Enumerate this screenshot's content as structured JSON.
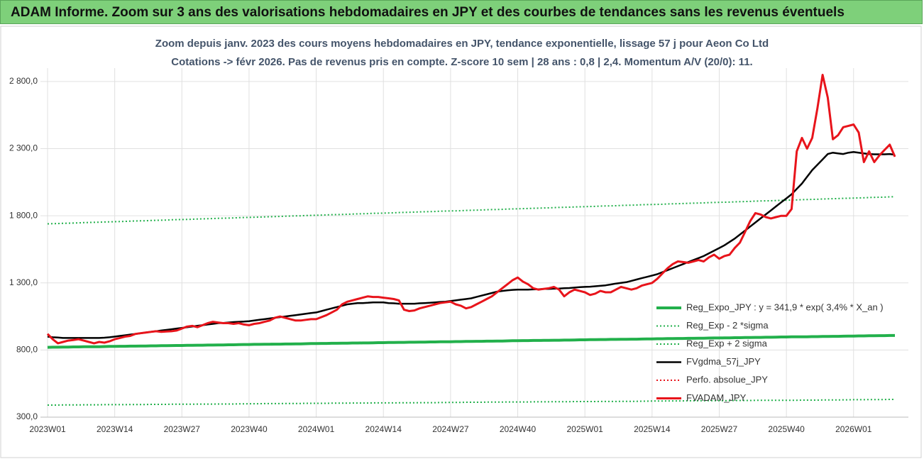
{
  "header": {
    "title": "ADAM Informe. Zoom sur 3 ans des valorisations hebdomadaires en JPY et des courbes de tendances sans les revenus éventuels"
  },
  "chart_data": {
    "type": "line",
    "title": "Zoom depuis janv. 2023 des cours moyens hebdomadaires en JPY, tendance exponentielle, lissage 57 j pour Aeon Co Ltd",
    "subtitle": "Cotations -> févr 2026. Pas de revenus pris en compte. Z-score 10 sem | 28 ans : 0,8 | 2,4. Momentum A/V (20/0): 11.",
    "categories": [
      "2023W01",
      null,
      null,
      null,
      null,
      null,
      null,
      null,
      null,
      null,
      null,
      null,
      null,
      "2023W14",
      null,
      null,
      null,
      null,
      null,
      null,
      null,
      null,
      null,
      null,
      null,
      null,
      "2023W27",
      null,
      null,
      null,
      null,
      null,
      null,
      null,
      null,
      null,
      null,
      null,
      null,
      "2023W40",
      null,
      null,
      null,
      null,
      null,
      null,
      null,
      null,
      null,
      null,
      null,
      null,
      "2024W01",
      null,
      null,
      null,
      null,
      null,
      null,
      null,
      null,
      null,
      null,
      null,
      null,
      "2024W14",
      null,
      null,
      null,
      null,
      null,
      null,
      null,
      null,
      null,
      null,
      null,
      null,
      "2024W27",
      null,
      null,
      null,
      null,
      null,
      null,
      null,
      null,
      null,
      null,
      null,
      null,
      "2024W40",
      null,
      null,
      null,
      null,
      null,
      null,
      null,
      null,
      null,
      null,
      null,
      null,
      "2025W01",
      null,
      null,
      null,
      null,
      null,
      null,
      null,
      null,
      null,
      null,
      null,
      null,
      "2025W14",
      null,
      null,
      null,
      null,
      null,
      null,
      null,
      null,
      null,
      null,
      null,
      null,
      "2025W27",
      null,
      null,
      null,
      null,
      null,
      null,
      null,
      null,
      null,
      null,
      null,
      null,
      "2025W40",
      null,
      null,
      null,
      null,
      null,
      null,
      null,
      null,
      null,
      null,
      null,
      null,
      "2026W01",
      null,
      null,
      null,
      null,
      null,
      null,
      null,
      null
    ],
    "ylim": [
      300,
      2900
    ],
    "yticks": [
      {
        "value": 300,
        "label": "300,0"
      },
      {
        "value": 800,
        "label": "800,0"
      },
      {
        "value": 1300,
        "label": "1 300,0"
      },
      {
        "value": 1800,
        "label": "1 800,0"
      },
      {
        "value": 2300,
        "label": "2 300,0"
      },
      {
        "value": 2800,
        "label": "2 800,0"
      }
    ],
    "grid": true,
    "legend": "lower right",
    "series": [
      {
        "name": "Reg_Expo_JPY : y = 341,9 * exp( 3,4% *  X_an )",
        "color": "#22b04b",
        "dash": "solid",
        "width": 4,
        "values": [
          820,
          821,
          821,
          822,
          822,
          823,
          823,
          824,
          824,
          825,
          825,
          826,
          827,
          827,
          828,
          828,
          829,
          829,
          830,
          830,
          831,
          831,
          832,
          832,
          833,
          834,
          834,
          835,
          835,
          836,
          836,
          837,
          837,
          838,
          838,
          839,
          839,
          840,
          841,
          841,
          842,
          842,
          843,
          843,
          844,
          844,
          845,
          845,
          846,
          846,
          847,
          848,
          848,
          849,
          849,
          850,
          850,
          851,
          851,
          852,
          852,
          853,
          853,
          854,
          855,
          855,
          856,
          856,
          857,
          857,
          858,
          858,
          859,
          859,
          860,
          860,
          861,
          862,
          862,
          863,
          863,
          864,
          864,
          865,
          865,
          866,
          866,
          867,
          867,
          868,
          869,
          869,
          870,
          870,
          871,
          871,
          872,
          872,
          873,
          873,
          874,
          874,
          875,
          876,
          876,
          877,
          877,
          878,
          878,
          879,
          879,
          880,
          880,
          881,
          881,
          882,
          883,
          883,
          884,
          884,
          885,
          885,
          886,
          886,
          887,
          887,
          888,
          888,
          889,
          890,
          890,
          891,
          891,
          892,
          892,
          893,
          893,
          894,
          894,
          895,
          895,
          896,
          897,
          897,
          898,
          898,
          899,
          899,
          900,
          900,
          901,
          901,
          902,
          902,
          903,
          904,
          904,
          905,
          905,
          906,
          906,
          907,
          907,
          908,
          908
        ]
      },
      {
        "name": "Reg_Exp - 2 *sigma",
        "color": "#22b04b",
        "dash": "dotted",
        "width": 2,
        "values": [
          390,
          390,
          390,
          391,
          391,
          391,
          391,
          392,
          392,
          392,
          392,
          393,
          393,
          393,
          393,
          393,
          394,
          394,
          394,
          394,
          395,
          395,
          395,
          395,
          396,
          396,
          396,
          396,
          396,
          397,
          397,
          397,
          397,
          398,
          398,
          398,
          398,
          399,
          399,
          400,
          400,
          400,
          401,
          401,
          401,
          401,
          402,
          402,
          402,
          402,
          403,
          403,
          403,
          403,
          403,
          404,
          404,
          404,
          404,
          405,
          405,
          405,
          405,
          406,
          406,
          406,
          406,
          406,
          407,
          407,
          407,
          407,
          408,
          408,
          408,
          408,
          409,
          409,
          410,
          410,
          410,
          411,
          411,
          411,
          411,
          412,
          412,
          412,
          412,
          413,
          413,
          413,
          413,
          413,
          414,
          414,
          414,
          414,
          415,
          415,
          415,
          415,
          416,
          416,
          416,
          416,
          416,
          417,
          417,
          417,
          417,
          418,
          418,
          418,
          418,
          419,
          419,
          420,
          420,
          420,
          421,
          421,
          421,
          421,
          422,
          422,
          422,
          422,
          423,
          423,
          423,
          423,
          423,
          424,
          424,
          424,
          424,
          425,
          425,
          425,
          425,
          426,
          426,
          426,
          426,
          426,
          427,
          427,
          427,
          427,
          428,
          428,
          428,
          428,
          429,
          429,
          430,
          430,
          430,
          431,
          431,
          431,
          431,
          432,
          432
        ]
      },
      {
        "name": "Reg_Exp + 2 sigma",
        "color": "#22b04b",
        "dash": "dotted",
        "width": 2,
        "values": [
          1740,
          1741,
          1742,
          1744,
          1745,
          1746,
          1747,
          1749,
          1750,
          1751,
          1752,
          1754,
          1755,
          1756,
          1757,
          1758,
          1760,
          1761,
          1762,
          1763,
          1765,
          1766,
          1767,
          1768,
          1770,
          1771,
          1772,
          1773,
          1774,
          1776,
          1777,
          1778,
          1779,
          1781,
          1782,
          1783,
          1784,
          1786,
          1787,
          1788,
          1789,
          1790,
          1792,
          1793,
          1794,
          1795,
          1797,
          1798,
          1799,
          1800,
          1802,
          1803,
          1804,
          1805,
          1806,
          1808,
          1809,
          1810,
          1811,
          1813,
          1814,
          1815,
          1816,
          1818,
          1819,
          1820,
          1821,
          1822,
          1824,
          1825,
          1826,
          1827,
          1829,
          1830,
          1831,
          1832,
          1834,
          1835,
          1836,
          1837,
          1838,
          1840,
          1841,
          1842,
          1843,
          1845,
          1846,
          1847,
          1848,
          1850,
          1851,
          1852,
          1853,
          1854,
          1856,
          1857,
          1858,
          1859,
          1861,
          1862,
          1863,
          1864,
          1866,
          1867,
          1868,
          1869,
          1870,
          1872,
          1873,
          1874,
          1875,
          1877,
          1878,
          1879,
          1880,
          1882,
          1883,
          1884,
          1885,
          1886,
          1888,
          1889,
          1890,
          1891,
          1893,
          1894,
          1895,
          1896,
          1898,
          1899,
          1900,
          1901,
          1902,
          1904,
          1905,
          1906,
          1907,
          1909,
          1910,
          1911,
          1912,
          1914,
          1915,
          1916,
          1917,
          1918,
          1920,
          1921,
          1922,
          1923,
          1925,
          1926,
          1927,
          1928,
          1930,
          1931,
          1932,
          1933,
          1934,
          1936,
          1937,
          1938,
          1939,
          1941,
          1942
        ]
      },
      {
        "name": "FVgdma_57j_JPY",
        "color": "#000000",
        "dash": "solid",
        "width": 2.5,
        "values": [
          900,
          895,
          893,
          890,
          890,
          890,
          890,
          890,
          890,
          890,
          890,
          892,
          895,
          900,
          905,
          910,
          915,
          920,
          925,
          930,
          935,
          940,
          945,
          950,
          955,
          960,
          965,
          970,
          975,
          980,
          985,
          990,
          995,
          1000,
          1002,
          1005,
          1008,
          1010,
          1012,
          1015,
          1020,
          1025,
          1030,
          1035,
          1040,
          1045,
          1050,
          1055,
          1060,
          1065,
          1070,
          1075,
          1080,
          1090,
          1100,
          1110,
          1120,
          1130,
          1140,
          1145,
          1150,
          1150,
          1152,
          1155,
          1155,
          1155,
          1150,
          1148,
          1145,
          1145,
          1145,
          1145,
          1148,
          1150,
          1152,
          1155,
          1158,
          1160,
          1165,
          1170,
          1175,
          1180,
          1185,
          1195,
          1205,
          1215,
          1225,
          1235,
          1240,
          1245,
          1248,
          1250,
          1250,
          1250,
          1252,
          1253,
          1255,
          1255,
          1257,
          1258,
          1260,
          1262,
          1265,
          1268,
          1270,
          1272,
          1275,
          1278,
          1282,
          1288,
          1295,
          1300,
          1305,
          1315,
          1325,
          1335,
          1345,
          1355,
          1365,
          1380,
          1395,
          1410,
          1425,
          1440,
          1455,
          1470,
          1485,
          1500,
          1520,
          1540,
          1560,
          1580,
          1605,
          1630,
          1660,
          1690,
          1720,
          1750,
          1780,
          1810,
          1840,
          1870,
          1900,
          1930,
          1960,
          2000,
          2040,
          2090,
          2140,
          2180,
          2220,
          2260,
          2270,
          2265,
          2260,
          2270,
          2275,
          2270,
          2265,
          2260,
          2258,
          2258,
          2258,
          2260,
          2255
        ]
      },
      {
        "name": "Perfo. absolue_JPY",
        "color": "#e8141b",
        "dash": "dotted",
        "width": 2,
        "values": [
          920,
          880,
          850,
          860,
          870,
          875,
          880,
          870,
          860,
          850,
          860,
          855,
          865,
          880,
          890,
          900,
          905,
          920,
          925,
          930,
          935,
          940,
          935,
          938,
          940,
          945,
          960,
          975,
          980,
          970,
          985,
          1000,
          1010,
          1005,
          1000,
          1000,
          995,
          1000,
          990,
          985,
          995,
          1000,
          1010,
          1020,
          1040,
          1050,
          1040,
          1030,
          1020,
          1020,
          1025,
          1030,
          1030,
          1045,
          1060,
          1080,
          1100,
          1140,
          1160,
          1170,
          1180,
          1190,
          1200,
          1195,
          1195,
          1190,
          1185,
          1180,
          1170,
          1100,
          1090,
          1095,
          1110,
          1120,
          1130,
          1140,
          1150,
          1155,
          1160,
          1140,
          1130,
          1110,
          1120,
          1140,
          1160,
          1180,
          1200,
          1230,
          1260,
          1290,
          1320,
          1340,
          1310,
          1290,
          1260,
          1250,
          1255,
          1260,
          1270,
          1250,
          1200,
          1230,
          1250,
          1240,
          1230,
          1210,
          1220,
          1240,
          1230,
          1230,
          1250,
          1270,
          1260,
          1250,
          1260,
          1280,
          1290,
          1300,
          1330,
          1370,
          1410,
          1440,
          1460,
          1455,
          1450,
          1460,
          1470,
          1460,
          1490,
          1510,
          1480,
          1500,
          1510,
          1560,
          1600,
          1680,
          1760,
          1820,
          1810,
          1790,
          1780,
          1790,
          1800,
          1800,
          1850,
          2280,
          2380,
          2300,
          2380,
          2600,
          2850,
          2680,
          2370,
          2400,
          2460,
          2470,
          2480,
          2420,
          2200,
          2280,
          2200,
          2250,
          2290,
          2330,
          2240
        ]
      },
      {
        "name": "FVADAM_JPY",
        "color": "#e8141b",
        "dash": "solid",
        "width": 3,
        "values": [
          920,
          880,
          850,
          860,
          870,
          875,
          880,
          870,
          860,
          850,
          860,
          855,
          865,
          880,
          890,
          900,
          905,
          920,
          925,
          930,
          935,
          940,
          935,
          938,
          940,
          945,
          960,
          975,
          980,
          970,
          985,
          1000,
          1010,
          1005,
          1000,
          1000,
          995,
          1000,
          990,
          985,
          995,
          1000,
          1010,
          1020,
          1040,
          1050,
          1040,
          1030,
          1020,
          1020,
          1025,
          1030,
          1030,
          1045,
          1060,
          1080,
          1100,
          1140,
          1160,
          1170,
          1180,
          1190,
          1200,
          1195,
          1195,
          1190,
          1185,
          1180,
          1170,
          1100,
          1090,
          1095,
          1110,
          1120,
          1130,
          1140,
          1150,
          1155,
          1160,
          1140,
          1130,
          1110,
          1120,
          1140,
          1160,
          1180,
          1200,
          1230,
          1260,
          1290,
          1320,
          1340,
          1310,
          1290,
          1260,
          1250,
          1255,
          1260,
          1270,
          1250,
          1200,
          1230,
          1250,
          1240,
          1230,
          1210,
          1220,
          1240,
          1230,
          1230,
          1250,
          1270,
          1260,
          1250,
          1260,
          1280,
          1290,
          1300,
          1330,
          1370,
          1410,
          1440,
          1460,
          1455,
          1450,
          1460,
          1470,
          1460,
          1490,
          1510,
          1480,
          1500,
          1510,
          1560,
          1600,
          1680,
          1760,
          1820,
          1810,
          1790,
          1780,
          1790,
          1800,
          1800,
          1850,
          2280,
          2380,
          2300,
          2380,
          2600,
          2850,
          2680,
          2370,
          2400,
          2460,
          2470,
          2480,
          2420,
          2200,
          2280,
          2200,
          2250,
          2290,
          2330,
          2240
        ]
      }
    ]
  }
}
